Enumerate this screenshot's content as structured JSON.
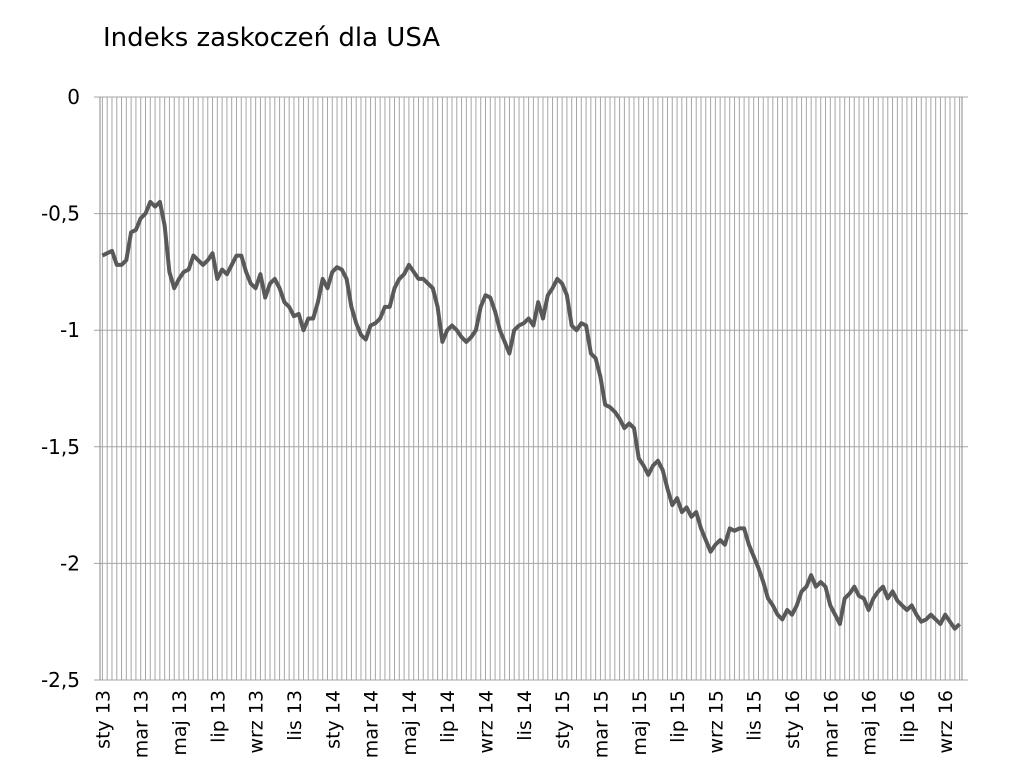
{
  "chart_data": {
    "type": "line",
    "title": "Indeks zaskoczeń dla USA",
    "categories": [
      "sty 13",
      null,
      null,
      null,
      null,
      null,
      null,
      null,
      "mar 13",
      null,
      null,
      null,
      null,
      null,
      null,
      null,
      "maj 13",
      null,
      null,
      null,
      null,
      null,
      null,
      null,
      "lip 13",
      null,
      null,
      null,
      null,
      null,
      null,
      null,
      "wrz 13",
      null,
      null,
      null,
      null,
      null,
      null,
      null,
      "lis 13",
      null,
      null,
      null,
      null,
      null,
      null,
      null,
      "sty 14",
      null,
      null,
      null,
      null,
      null,
      null,
      null,
      "mar 14",
      null,
      null,
      null,
      null,
      null,
      null,
      null,
      "maj 14",
      null,
      null,
      null,
      null,
      null,
      null,
      null,
      "lip 14",
      null,
      null,
      null,
      null,
      null,
      null,
      null,
      "wrz 14",
      null,
      null,
      null,
      null,
      null,
      null,
      null,
      "lis 14",
      null,
      null,
      null,
      null,
      null,
      null,
      null,
      "sty 15",
      null,
      null,
      null,
      null,
      null,
      null,
      null,
      "mar 15",
      null,
      null,
      null,
      null,
      null,
      null,
      null,
      "maj 15",
      null,
      null,
      null,
      null,
      null,
      null,
      null,
      "lip 15",
      null,
      null,
      null,
      null,
      null,
      null,
      null,
      "wrz 15",
      null,
      null,
      null,
      null,
      null,
      null,
      null,
      "lis 15",
      null,
      null,
      null,
      null,
      null,
      null,
      null,
      "sty 16",
      null,
      null,
      null,
      null,
      null,
      null,
      null,
      "mar 16",
      null,
      null,
      null,
      null,
      null,
      null,
      null,
      "maj 16",
      null,
      null,
      null,
      null,
      null,
      null,
      null,
      "lip 16",
      null,
      null,
      null,
      null,
      null,
      null,
      null,
      "wrz 16",
      null,
      null,
      null
    ],
    "series": [
      {
        "color": "#595959",
        "values": [
          -0.68,
          -0.67,
          -0.66,
          -0.72,
          -0.72,
          -0.7,
          -0.58,
          -0.57,
          -0.52,
          -0.5,
          -0.45,
          -0.47,
          -0.45,
          -0.55,
          -0.75,
          -0.82,
          -0.78,
          -0.75,
          -0.74,
          -0.68,
          -0.7,
          -0.72,
          -0.7,
          -0.67,
          -0.78,
          -0.74,
          -0.76,
          -0.72,
          -0.68,
          -0.68,
          -0.75,
          -0.8,
          -0.82,
          -0.76,
          -0.86,
          -0.8,
          -0.78,
          -0.82,
          -0.88,
          -0.9,
          -0.94,
          -0.93,
          -1.0,
          -0.95,
          -0.95,
          -0.88,
          -0.78,
          -0.82,
          -0.75,
          -0.73,
          -0.74,
          -0.78,
          -0.9,
          -0.97,
          -1.02,
          -1.04,
          -0.98,
          -0.97,
          -0.95,
          -0.9,
          -0.9,
          -0.82,
          -0.78,
          -0.76,
          -0.72,
          -0.75,
          -0.78,
          -0.78,
          -0.8,
          -0.82,
          -0.9,
          -1.05,
          -1.0,
          -0.98,
          -1.0,
          -1.03,
          -1.05,
          -1.03,
          -1.0,
          -0.9,
          -0.85,
          -0.86,
          -0.92,
          -1.0,
          -1.05,
          -1.1,
          -1.0,
          -0.98,
          -0.97,
          -0.95,
          -0.98,
          -0.88,
          -0.95,
          -0.85,
          -0.82,
          -0.78,
          -0.8,
          -0.85,
          -0.98,
          -1.0,
          -0.97,
          -0.98,
          -1.1,
          -1.12,
          -1.2,
          -1.32,
          -1.33,
          -1.35,
          -1.38,
          -1.42,
          -1.4,
          -1.42,
          -1.55,
          -1.58,
          -1.62,
          -1.58,
          -1.56,
          -1.6,
          -1.68,
          -1.75,
          -1.72,
          -1.78,
          -1.76,
          -1.8,
          -1.78,
          -1.85,
          -1.9,
          -1.95,
          -1.92,
          -1.9,
          -1.92,
          -1.85,
          -1.86,
          -1.85,
          -1.85,
          -1.92,
          -1.97,
          -2.02,
          -2.08,
          -2.15,
          -2.18,
          -2.22,
          -2.24,
          -2.2,
          -2.22,
          -2.18,
          -2.12,
          -2.1,
          -2.05,
          -2.1,
          -2.08,
          -2.1,
          -2.18,
          -2.22,
          -2.26,
          -2.15,
          -2.13,
          -2.1,
          -2.14,
          -2.15,
          -2.2,
          -2.15,
          -2.12,
          -2.1,
          -2.15,
          -2.12,
          -2.16,
          -2.18,
          -2.2,
          -2.18,
          -2.22,
          -2.25,
          -2.24,
          -2.22,
          -2.24,
          -2.26,
          -2.22,
          -2.25,
          -2.28,
          -2.26
        ]
      }
    ],
    "ylim": [
      -2.5,
      0
    ],
    "yticks": [
      0,
      {
        "value": -0.5,
        "label": "-0,5"
      },
      -1,
      {
        "value": -1.5,
        "label": "-1,5"
      },
      -2,
      {
        "value": -2.5,
        "label": "-2,5"
      }
    ],
    "grid": true
  }
}
